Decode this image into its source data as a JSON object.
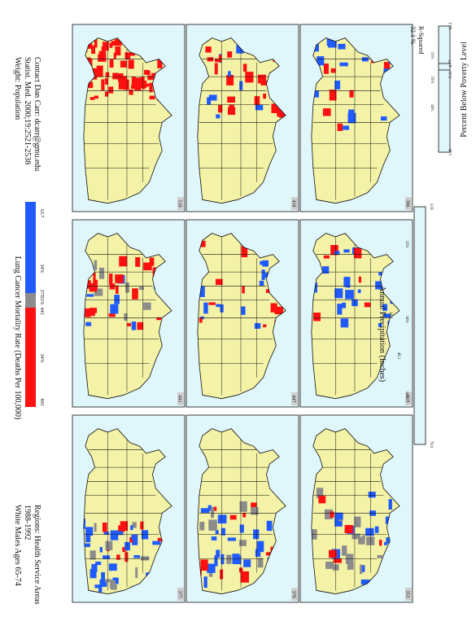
{
  "header": {
    "line1": "White Males Ages 65-74",
    "line2": "1988-1992",
    "line3": "Regions: Health Service Areas"
  },
  "legend": {
    "title": "Lung Cancer Mortality Rate (Deaths Per 100,000)",
    "breaks": [
      "63.7",
      "375",
      "443",
      "893"
    ],
    "percents": [
      "34%",
      "32%",
      "34%"
    ],
    "colors": {
      "low": "#1f5bff",
      "mid": "#8c8c8c",
      "high": "#ff1010"
    }
  },
  "credits": {
    "line1": "Weight: Population",
    "line2": "Statist. Med. 2000;19:2521-2538",
    "line3": "Contact Dan Carr: dcarr@gmu.edu"
  },
  "poverty": {
    "title": "Percent Below Poverty Level",
    "ticks": [
      "24.3",
      "6.77",
      "5.31",
      "1.40"
    ],
    "percents": [
      "31%",
      "35%",
      "34%"
    ]
  },
  "precip": {
    "title": "Annual Precipitation (Inches)",
    "ticks": [
      "3.05",
      "34.2",
      "46.1",
      "79.0"
    ],
    "percents": [
      "32%",
      "34%",
      "34%"
    ]
  },
  "rsquared": {
    "value": "32.1 %",
    "label": "R-Squared"
  },
  "panels": [
    {
      "count": "377",
      "row": 0,
      "col": 0,
      "pattern": "west-mixed"
    },
    {
      "count": "441",
      "row": 0,
      "col": 1,
      "pattern": "central-red"
    },
    {
      "count": "510",
      "row": 0,
      "col": 2,
      "pattern": "east-red"
    },
    {
      "count": "370",
      "row": 1,
      "col": 0,
      "pattern": "west-blue"
    },
    {
      "count": "447",
      "row": 1,
      "col": 1,
      "pattern": "central-scatter"
    },
    {
      "count": "458",
      "row": 1,
      "col": 2,
      "pattern": "east-scatter"
    },
    {
      "count": "353",
      "row": 2,
      "col": 0,
      "pattern": "south-mixed"
    },
    {
      "count": "418",
      "row": 2,
      "col": 1,
      "pattern": "central-light"
    },
    {
      "count": "386",
      "row": 2,
      "col": 2,
      "pattern": "east-light"
    }
  ],
  "colors": {
    "panel_bg": "#dff6fb",
    "land": "#f4f2a6",
    "border": "#111111"
  }
}
